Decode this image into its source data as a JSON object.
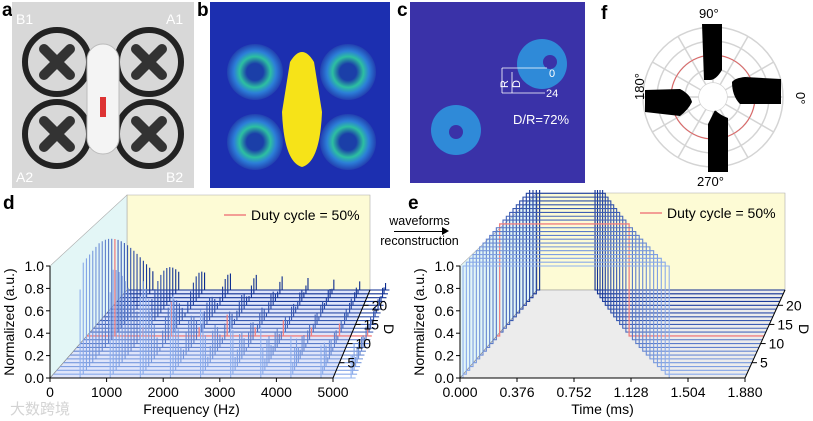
{
  "panels": {
    "a": {
      "label": "a",
      "corner_labels": [
        "B1",
        "A1",
        "A2",
        "B2"
      ]
    },
    "b": {
      "label": "b"
    },
    "c": {
      "label": "c",
      "annotation_R": "R",
      "annotation_D": "D",
      "marker_0": "0",
      "marker_24": "24",
      "ratio_text": "D/R=72%"
    },
    "f": {
      "label": "f",
      "angles": [
        "90°",
        "180°",
        "0°",
        "270°"
      ]
    },
    "d": {
      "label": "d"
    },
    "e": {
      "label": "e"
    }
  },
  "arrow": {
    "line1": "waveforms",
    "line2": "reconstruction"
  },
  "watermark": "大数跨境",
  "colors": {
    "light_series": "#8fb0ee",
    "dark_series": "#0a2a8f",
    "highlight": "#f08080",
    "back_wall": "#fdfbd5",
    "side_wall": "#e3f6f6"
  },
  "chart_data": [
    {
      "type": "bar",
      "panel": "d",
      "title": "",
      "xlabel": "Frequency (Hz)",
      "ylabel": "Normalized (a.u.)",
      "zlabel": "D",
      "xticks": [
        "0",
        "1000",
        "2000",
        "3000",
        "4000",
        "5000"
      ],
      "yticks": [
        "0.0",
        "0.2",
        "0.4",
        "0.6",
        "0.8",
        "1.0"
      ],
      "zticks": [
        "5",
        "10",
        "15",
        "20"
      ],
      "xlim": [
        0,
        5000
      ],
      "ylim": [
        0,
        1.0
      ],
      "zlim": [
        1,
        24
      ],
      "fundamental_hz": 532,
      "legend": {
        "entry": "Duty cycle = 50%",
        "placement": "top-right"
      },
      "highlight_D": 12
    },
    {
      "type": "line",
      "panel": "e",
      "title": "",
      "xlabel": "Time (ms)",
      "ylabel": "Normalized (a.u.)",
      "zlabel": "D",
      "xticks": [
        "0.000",
        "0.376",
        "0.752",
        "1.128",
        "1.504",
        "1.880"
      ],
      "yticks": [
        "0.0",
        "0.2",
        "0.4",
        "0.6",
        "0.8",
        "1.0"
      ],
      "zticks": [
        "5",
        "10",
        "15",
        "20"
      ],
      "xlim": [
        0,
        1.88
      ],
      "ylim": [
        0,
        1.0
      ],
      "zlim": [
        1,
        24
      ],
      "rise_ms": 0.02,
      "fall_ms_at_D1": 1.38,
      "fall_ms_at_D24": 0.44,
      "legend": {
        "entry": "Duty cycle = 50%",
        "placement": "top-right"
      },
      "highlight_D": 12
    }
  ]
}
